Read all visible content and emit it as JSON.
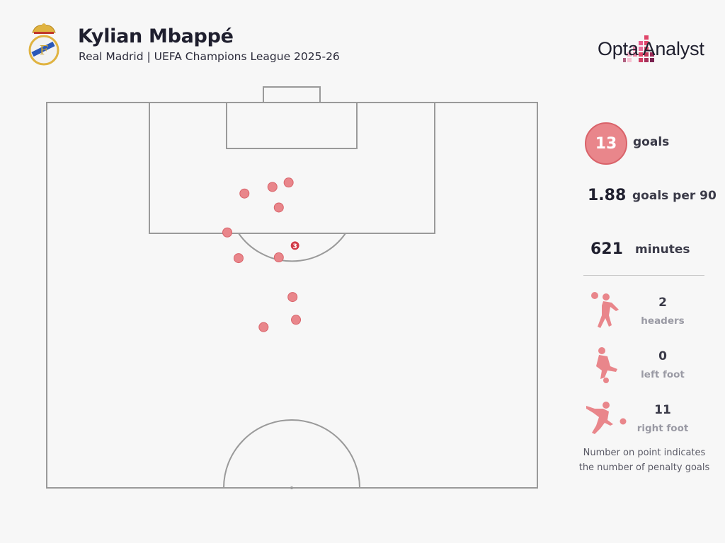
{
  "header": {
    "title": "Kylian Mbappé",
    "subtitle": "Real Madrid | UEFA Champions League 2025-26",
    "brand": "Opta Analyst"
  },
  "colors": {
    "shot": "#e9868b",
    "shot_stroke": "#d9636a",
    "penalty_marker": "#d23c48",
    "pitch_line": "#9a9a9a",
    "accent": "#e05a66"
  },
  "stats": {
    "goals": {
      "value": "13",
      "label": "goals"
    },
    "goals_per_90": {
      "value": "1.88",
      "label": "goals per 90"
    },
    "minutes": {
      "value": "621",
      "label": "minutes"
    }
  },
  "breakdown": [
    {
      "icon": "header-player-icon",
      "count": "2",
      "label": "headers"
    },
    {
      "icon": "left-foot-player-icon",
      "count": "0",
      "label": "left foot"
    },
    {
      "icon": "right-foot-player-icon",
      "count": "11",
      "label": "right foot"
    }
  ],
  "note": [
    "Number on point indicates",
    "the number of penalty goals"
  ],
  "chart_data": {
    "type": "scatter",
    "pitch": "half-pitch, goal at top",
    "x_units": "pitch width 0-100 (left to right)",
    "y_units": "distance from goal line in metres",
    "points": [
      {
        "x": 46,
        "y": 11.5,
        "penalty_goals": 0
      },
      {
        "x": 49.3,
        "y": 10.9,
        "penalty_goals": 0
      },
      {
        "x": 40.3,
        "y": 12.4,
        "penalty_goals": 0
      },
      {
        "x": 47.3,
        "y": 14.3,
        "penalty_goals": 0
      },
      {
        "x": 36.8,
        "y": 17.7,
        "penalty_goals": 0
      },
      {
        "x": 50.6,
        "y": 19.5,
        "penalty_goals": 3
      },
      {
        "x": 39.1,
        "y": 21.2,
        "penalty_goals": 0
      },
      {
        "x": 47.3,
        "y": 21.1,
        "penalty_goals": 0
      },
      {
        "x": 50.1,
        "y": 26.5,
        "penalty_goals": 0
      },
      {
        "x": 50.8,
        "y": 29.6,
        "penalty_goals": 0
      },
      {
        "x": 44.2,
        "y": 30.6,
        "penalty_goals": 0
      }
    ]
  }
}
